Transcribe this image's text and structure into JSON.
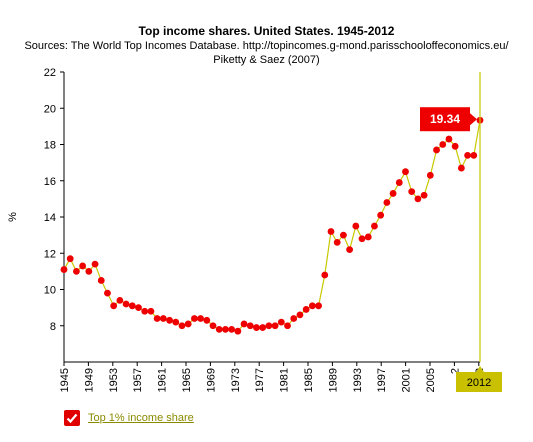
{
  "chart_data": {
    "type": "line",
    "title": "Top income shares. United States. 1945-2012",
    "subtitle_lines": [
      "Sources: The World Top Incomes Database. http://topincomes.g-mond.parisschooloffeconomics.eu/",
      "Piketty & Saez (2007)"
    ],
    "ylabel": "%",
    "ylim": [
      6,
      22
    ],
    "yticks": [
      8,
      10,
      12,
      14,
      16,
      18,
      20,
      22
    ],
    "xlim": [
      1945,
      2012
    ],
    "xticks": [
      "1945",
      "1949",
      "1953",
      "1957",
      "1961",
      "1965",
      "1969",
      "1973",
      "1977",
      "1981",
      "1985",
      "1989",
      "1993",
      "1997",
      "2001",
      "2005",
      "2",
      "2"
    ],
    "grid": false,
    "legend_position": "bottom-left",
    "series": [
      {
        "name": "Top 1% income share",
        "color": "#c8c800",
        "marker_color": "#ee0000",
        "x": [
          1945,
          1946,
          1947,
          1948,
          1949,
          1950,
          1951,
          1952,
          1953,
          1954,
          1955,
          1956,
          1957,
          1958,
          1959,
          1960,
          1961,
          1962,
          1963,
          1964,
          1965,
          1966,
          1967,
          1968,
          1969,
          1970,
          1971,
          1972,
          1973,
          1974,
          1975,
          1976,
          1977,
          1978,
          1979,
          1980,
          1981,
          1982,
          1983,
          1984,
          1985,
          1986,
          1987,
          1988,
          1989,
          1990,
          1991,
          1992,
          1993,
          1994,
          1995,
          1996,
          1997,
          1998,
          1999,
          2000,
          2001,
          2002,
          2003,
          2004,
          2005,
          2006,
          2007,
          2008,
          2009,
          2010,
          2011,
          2012
        ],
        "values": [
          11.1,
          11.7,
          11.0,
          11.3,
          11.0,
          11.4,
          10.5,
          9.8,
          9.1,
          9.4,
          9.2,
          9.1,
          9.0,
          8.8,
          8.8,
          8.4,
          8.4,
          8.3,
          8.2,
          8.0,
          8.1,
          8.4,
          8.4,
          8.3,
          8.0,
          7.8,
          7.8,
          7.8,
          7.7,
          8.1,
          8.0,
          7.9,
          7.9,
          8.0,
          8.0,
          8.2,
          8.0,
          8.4,
          8.6,
          8.9,
          9.1,
          9.1,
          10.8,
          13.2,
          12.6,
          13.0,
          12.2,
          13.5,
          12.8,
          12.9,
          13.5,
          14.1,
          14.8,
          15.3,
          15.9,
          16.5,
          15.4,
          15.0,
          15.2,
          16.3,
          17.7,
          18.0,
          18.3,
          17.9,
          16.7,
          17.4,
          17.4,
          19.34
        ]
      }
    ],
    "highlight": {
      "x_label": "2012",
      "value_label": "19.34"
    }
  }
}
